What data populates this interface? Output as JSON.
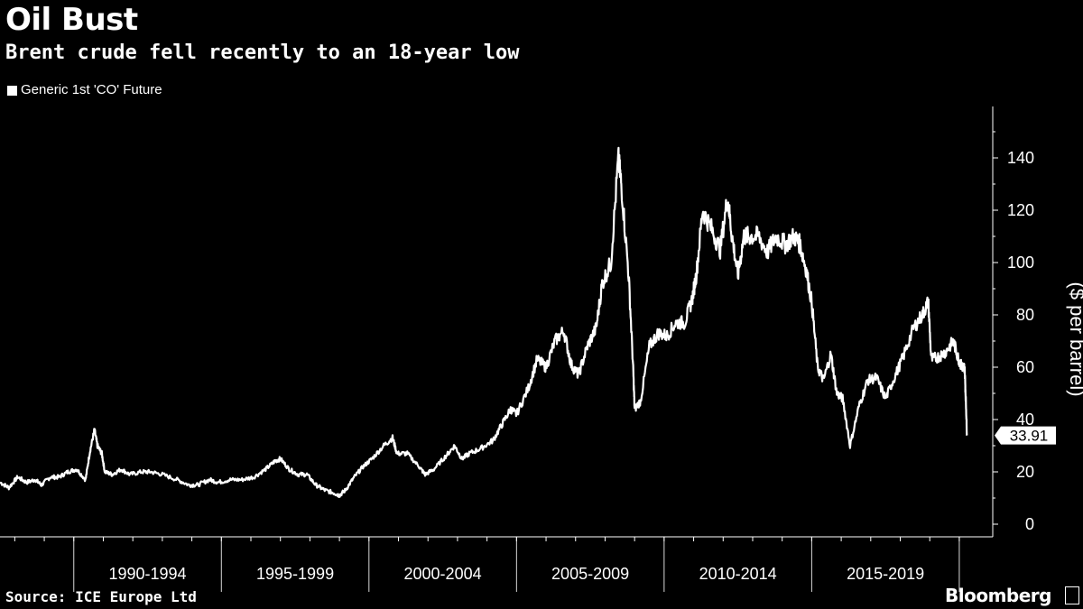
{
  "header": {
    "title": "Oil Bust",
    "subtitle": "Brent crude fell recently to an 18-year low"
  },
  "footer": {
    "source": "Source: ICE Europe Ltd",
    "brand": "Bloomberg"
  },
  "colors": {
    "background": "#000000",
    "line": "#ffffff",
    "text": "#ffffff"
  },
  "chart_data": {
    "type": "line",
    "title": "Oil Bust",
    "subtitle": "Brent crude fell recently to an 18-year low",
    "ylabel": "($ per barrel)",
    "xlabel": "",
    "ylim": [
      0,
      150
    ],
    "xlim": [
      1987.5,
      2020.4
    ],
    "yticks": [
      0,
      20,
      40,
      60,
      80,
      100,
      120,
      140
    ],
    "x_periods": [
      "1990-1994",
      "1995-1999",
      "2000-2004",
      "2005-2009",
      "2010-2014",
      "2015-2019"
    ],
    "grid": false,
    "legend_position": "top-left",
    "last_value_label": "33.91",
    "series": [
      {
        "name": "Generic 1st 'CO' Future",
        "x": [
          1987.5,
          1987.8,
          1988.1,
          1988.4,
          1988.7,
          1988.9,
          1989.2,
          1989.5,
          1989.8,
          1990.1,
          1990.4,
          1990.55,
          1990.7,
          1990.8,
          1990.95,
          1991.05,
          1991.3,
          1991.6,
          1991.9,
          1992.3,
          1992.6,
          1993.0,
          1993.5,
          1993.9,
          1994.2,
          1994.6,
          1994.9,
          1995.3,
          1995.7,
          1996.1,
          1996.5,
          1996.8,
          1997.0,
          1997.3,
          1997.6,
          1997.9,
          1998.2,
          1998.5,
          1998.8,
          1999.0,
          1999.2,
          1999.5,
          1999.8,
          2000.1,
          2000.5,
          2000.8,
          2000.95,
          2001.3,
          2001.7,
          2001.9,
          2002.2,
          2002.6,
          2002.9,
          2003.15,
          2003.4,
          2003.8,
          2004.2,
          2004.5,
          2004.8,
          2005.0,
          2005.4,
          2005.7,
          2006.0,
          2006.3,
          2006.6,
          2006.85,
          2007.1,
          2007.4,
          2007.7,
          2007.9,
          2008.2,
          2008.45,
          2008.55,
          2008.8,
          2008.95,
          2009.0,
          2009.2,
          2009.5,
          2009.8,
          2010.1,
          2010.4,
          2010.7,
          2010.95,
          2011.1,
          2011.3,
          2011.6,
          2011.9,
          2012.15,
          2012.3,
          2012.5,
          2012.7,
          2012.9,
          2013.2,
          2013.5,
          2013.8,
          2014.1,
          2014.4,
          2014.6,
          2014.8,
          2015.0,
          2015.2,
          2015.4,
          2015.65,
          2015.85,
          2016.05,
          2016.3,
          2016.6,
          2016.9,
          2017.2,
          2017.5,
          2017.8,
          2018.1,
          2018.45,
          2018.75,
          2018.95,
          2019.05,
          2019.3,
          2019.55,
          2019.8,
          2019.95,
          2020.05,
          2020.12,
          2020.18,
          2020.22,
          2020.26
        ],
        "y": [
          16,
          14,
          18,
          16,
          17,
          15,
          18,
          18,
          20,
          21,
          17,
          28,
          36,
          30,
          27,
          20,
          19,
          21,
          19,
          20,
          20,
          19,
          17,
          15,
          15,
          17,
          16,
          17,
          17,
          18,
          21,
          24,
          25,
          21,
          19,
          19,
          15,
          13,
          12,
          11,
          13,
          18,
          22,
          25,
          30,
          33,
          27,
          27,
          22,
          19,
          21,
          26,
          30,
          25,
          27,
          29,
          32,
          38,
          44,
          42,
          52,
          63,
          60,
          70,
          74,
          61,
          57,
          68,
          75,
          92,
          100,
          140,
          130,
          95,
          60,
          44,
          47,
          68,
          73,
          72,
          77,
          77,
          86,
          96,
          120,
          113,
          105,
          125,
          110,
          95,
          110,
          110,
          110,
          104,
          110,
          107,
          110,
          107,
          98,
          85,
          60,
          55,
          65,
          50,
          48,
          30,
          45,
          55,
          56,
          48,
          56,
          64,
          75,
          80,
          85,
          63,
          64,
          66,
          70,
          64,
          61,
          60,
          60,
          48,
          33.91
        ]
      }
    ]
  }
}
